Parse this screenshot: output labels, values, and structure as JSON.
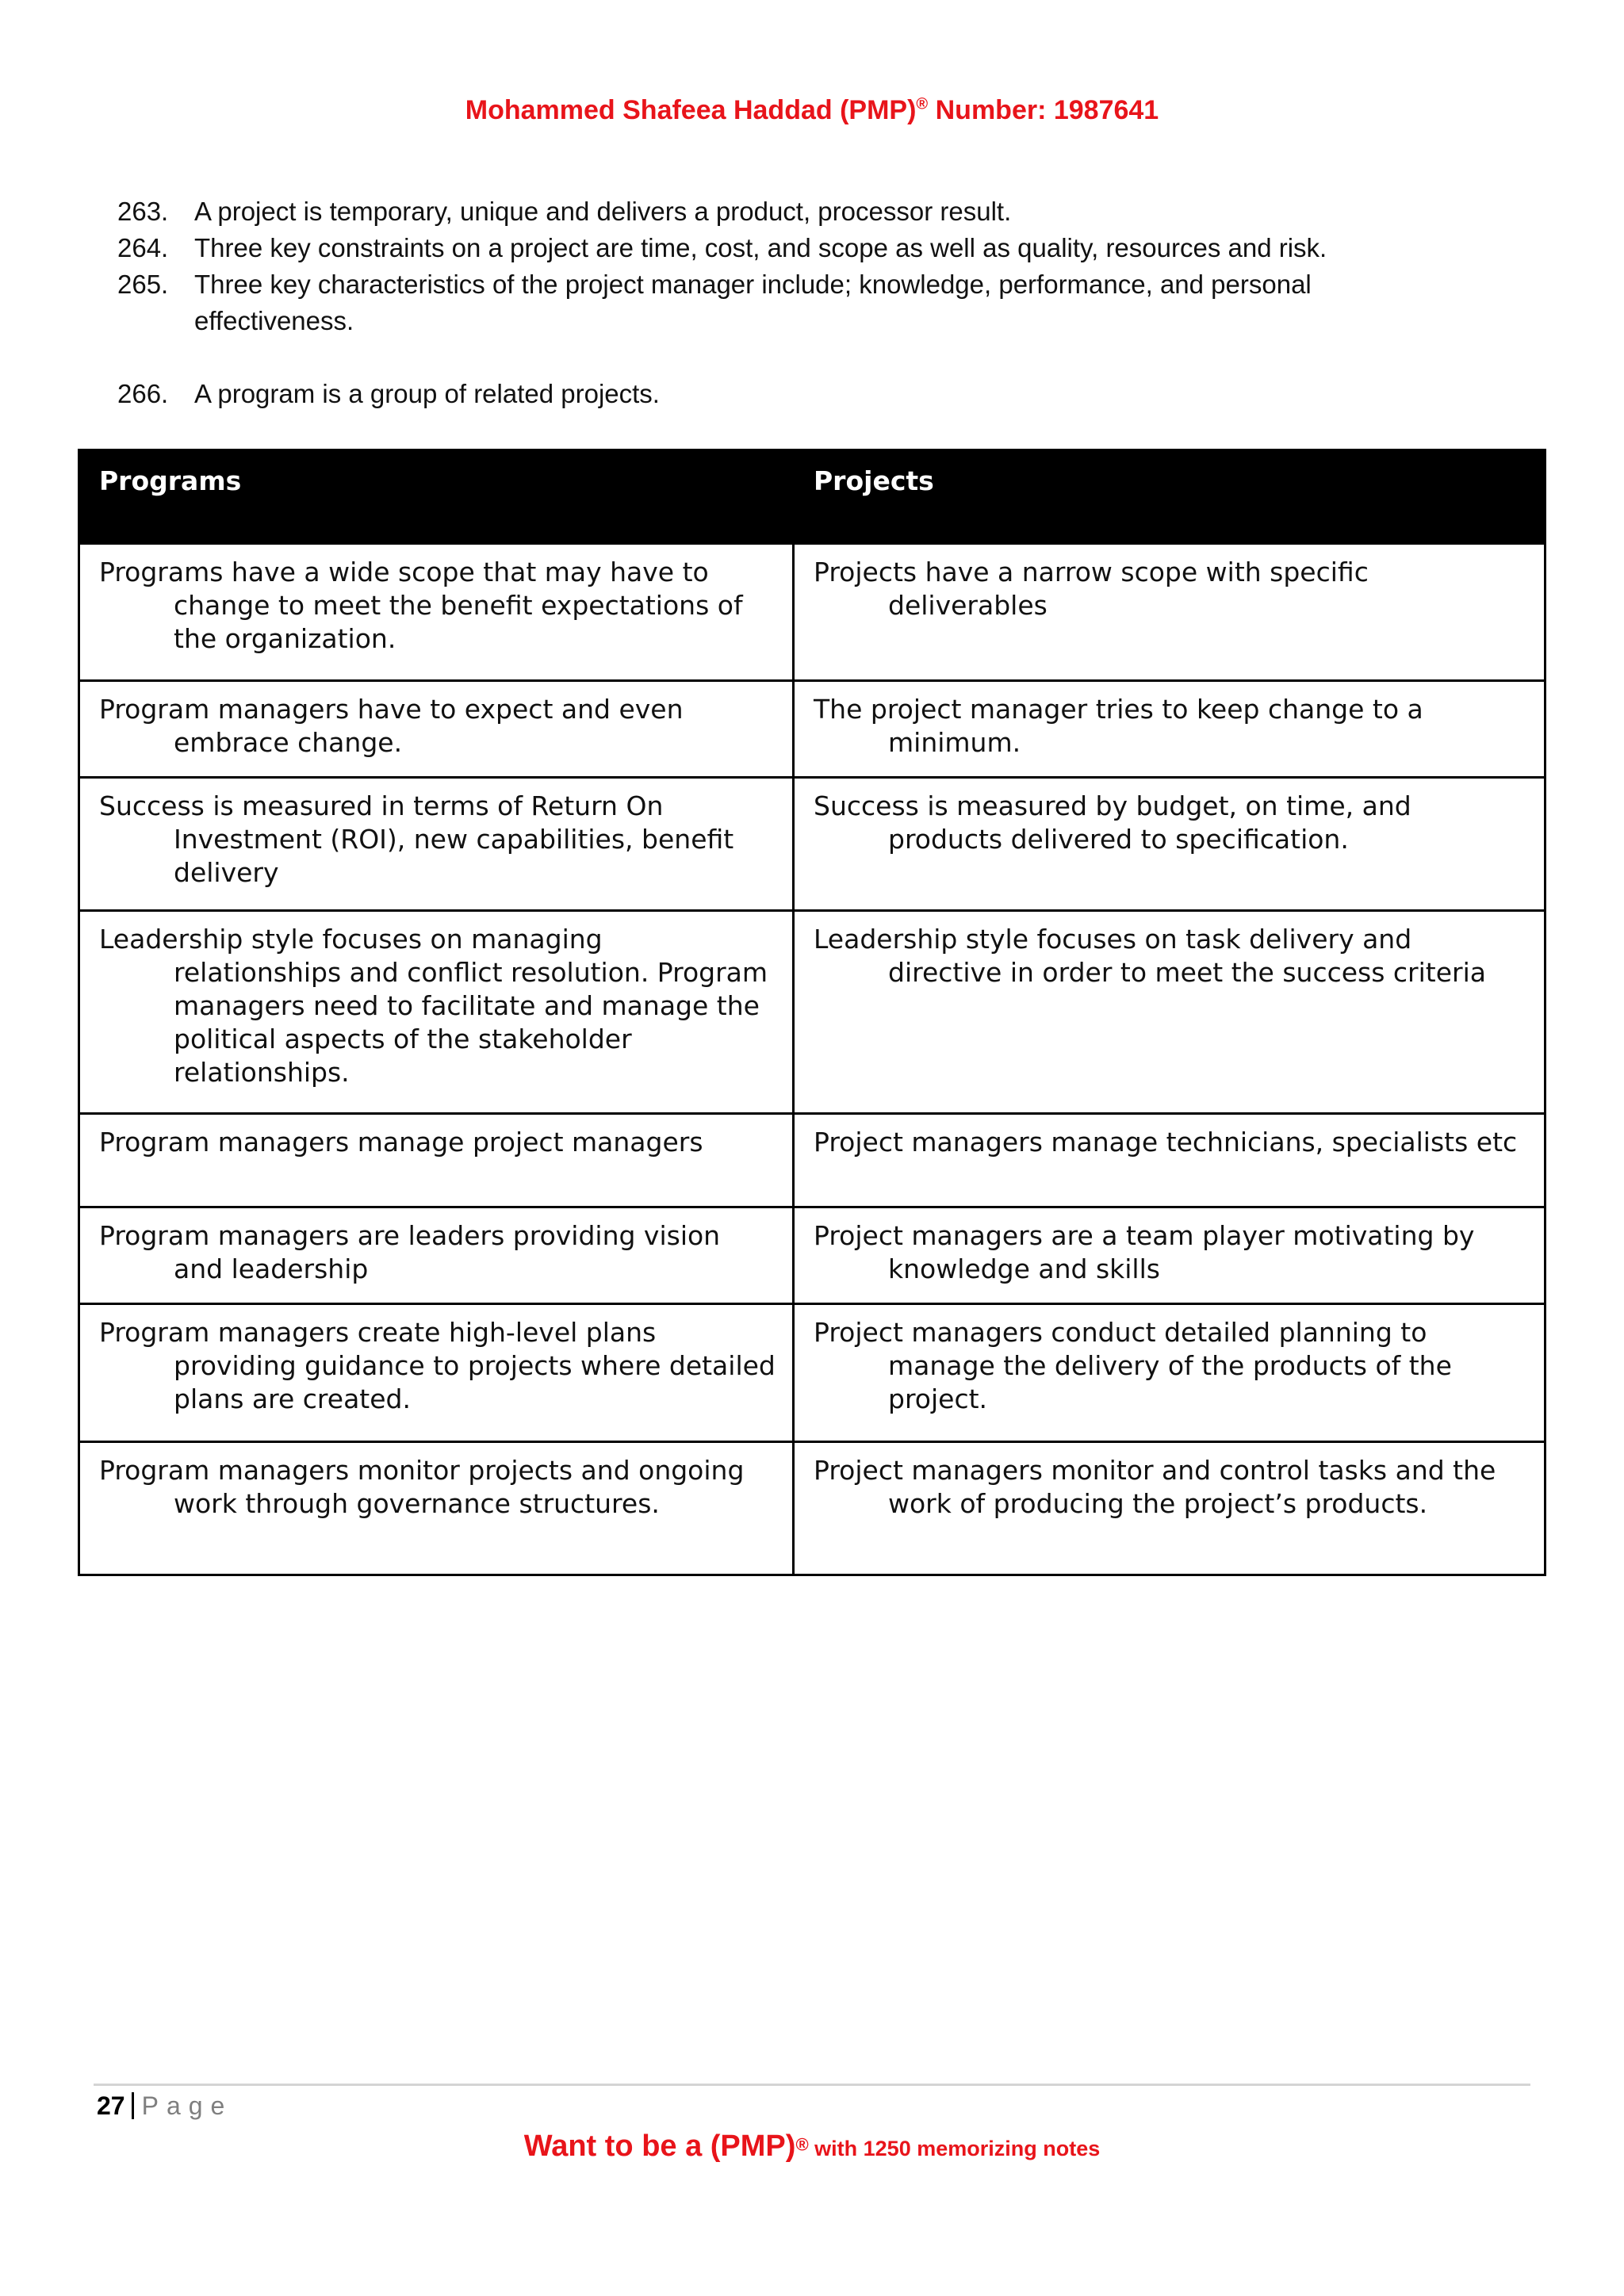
{
  "header": {
    "text": "Mohammed Shafeea Haddad (PMP)",
    "reg": "®",
    "number": " Number: 1987641"
  },
  "items": [
    {
      "num": "263.",
      "text": "A project is temporary, unique and delivers a product, processor result."
    },
    {
      "num": "264.",
      "text": "Three key constraints on a project are time, cost, and scope as well as quality, resources and risk."
    },
    {
      "num": "265.",
      "text": "Three key characteristics of the project manager include; knowledge, performance, and personal effectiveness."
    },
    {
      "num": "266.",
      "text": "A program is a group of related projects."
    }
  ],
  "table": {
    "headers": [
      "Programs",
      "Projects"
    ],
    "rows": [
      [
        "Programs have a wide scope that may have to change to meet the benefit expectations of the organization.",
        "Projects have a narrow scope with specific deliverables"
      ],
      [
        "Program managers have to expect and even embrace change.",
        "The project manager tries to keep change to a minimum."
      ],
      [
        "Success is measured in terms of Return On Investment (ROI), new capabilities, benefit delivery",
        "Success is measured by budget, on time, and products delivered to specification."
      ],
      [
        "Leadership style focuses on managing relationships and conflict resolution. Program managers need to facilitate and manage the political aspects of the stakeholder relationships.",
        "Leadership style focuses on task delivery and directive in order to meet the success criteria"
      ],
      [
        "Program managers manage project managers",
        "Project managers manage technicians, specialists etc"
      ],
      [
        "Program managers are leaders providing vision and leadership",
        "Project managers are a team player motivating by knowledge and skills"
      ],
      [
        "Program managers create high-level plans providing guidance to projects where detailed plans are created.",
        "Project managers conduct detailed planning to manage the delivery of the products of the project."
      ],
      [
        "Program managers monitor projects and ongoing work through governance structures.",
        "Project managers monitor and control tasks and the work of producing the project’s products."
      ]
    ]
  },
  "footer": {
    "page_number": "27",
    "page_word": "Page",
    "promo_big": "Want to be a (PMP)",
    "promo_reg": "®",
    "promo_small": " with 1250 memorizing notes"
  },
  "colors": {
    "accent": "#e8141a",
    "table_header_bg": "#000000"
  }
}
